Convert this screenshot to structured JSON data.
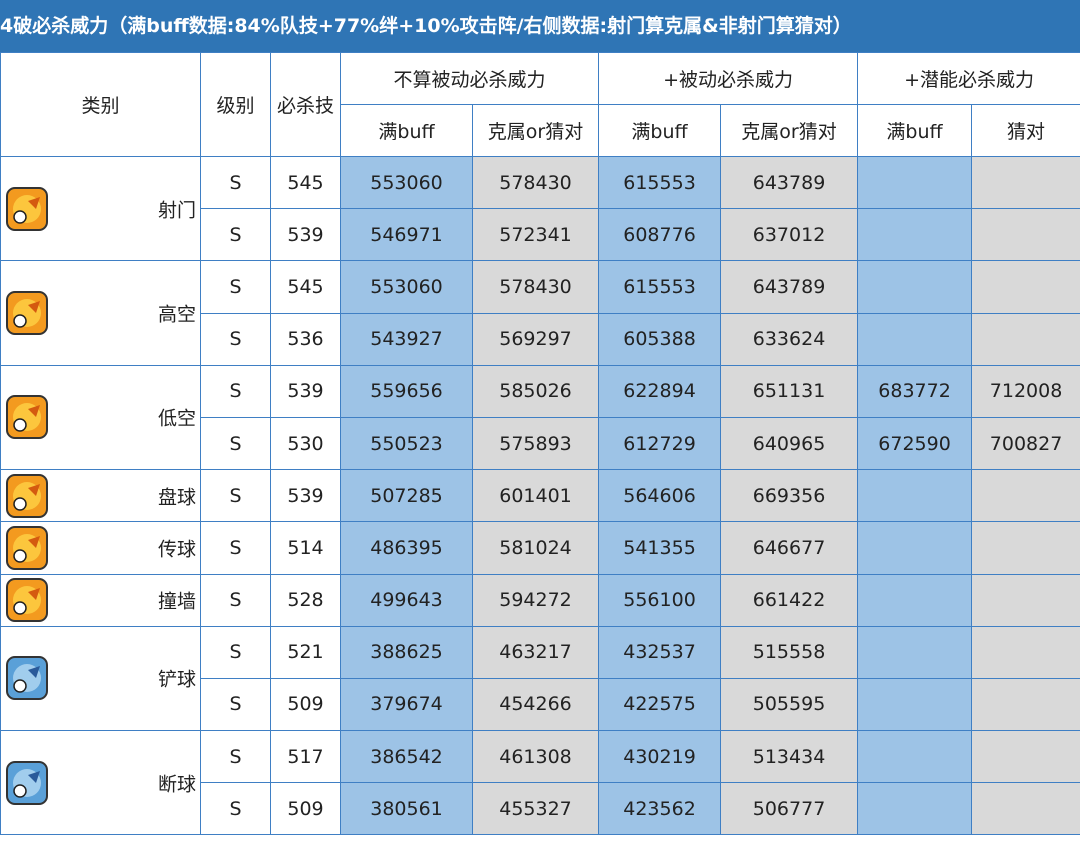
{
  "title": "4破必杀威力（满buff数据:84%队技+77%绊+10%攻击阵/右侧数据:射门算克属&非射门算猜对）",
  "header": {
    "category": "类别",
    "level": "级别",
    "skill": "必杀技",
    "groups": [
      "不算被动必杀威力",
      "+被动必杀威力",
      "+潜能必杀威力"
    ],
    "sub": [
      "满buff",
      "克属or猜对",
      "满buff",
      "克属or猜对",
      "满buff",
      "猜对"
    ]
  },
  "groups": [
    {
      "category": "射门",
      "rows": [
        [
          "S",
          545,
          553060,
          578430,
          615553,
          643789
        ],
        [
          "S",
          539,
          546971,
          572341,
          608776,
          637012
        ]
      ]
    },
    {
      "category": "高空",
      "rows": [
        [
          "S",
          545,
          553060,
          578430,
          615553,
          643789
        ],
        [
          "S",
          536,
          543927,
          569297,
          605388,
          633624
        ]
      ]
    },
    {
      "category": "低空",
      "rows": [
        [
          "S",
          539,
          559656,
          585026,
          622894,
          651131,
          683772,
          712008
        ],
        [
          "S",
          530,
          550523,
          575893,
          612729,
          640965,
          672590,
          700827
        ]
      ]
    },
    {
      "category": "盘球",
      "rows": [
        [
          "S",
          539,
          507285,
          601401,
          564606,
          669356
        ]
      ]
    },
    {
      "category": "传球",
      "rows": [
        [
          "S",
          514,
          486395,
          581024,
          541355,
          646677
        ]
      ]
    },
    {
      "category": "撞墙",
      "rows": [
        [
          "S",
          528,
          499643,
          594272,
          556100,
          661422
        ]
      ]
    },
    {
      "category": "铲球",
      "rows": [
        [
          "S",
          521,
          388625,
          463217,
          432537,
          515558
        ],
        [
          "S",
          509,
          379674,
          454266,
          422575,
          505595
        ]
      ]
    },
    {
      "category": "断球",
      "rows": [
        [
          "S",
          517,
          386542,
          461308,
          430219,
          513434
        ],
        [
          "S",
          509,
          380561,
          455327,
          423562,
          506777
        ]
      ]
    }
  ]
}
